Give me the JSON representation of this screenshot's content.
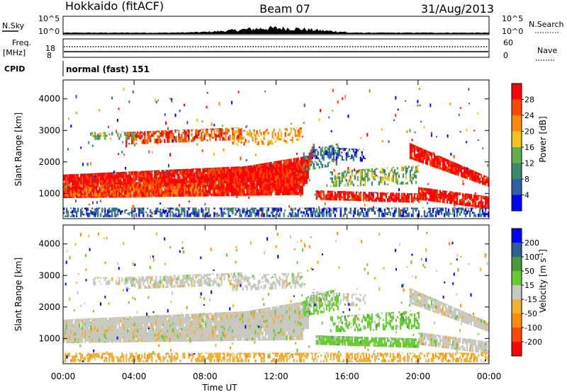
{
  "header": {
    "title": "Hokkaido (fitACF)",
    "beam": "Beam 07",
    "date": "31/Aug/2013"
  },
  "sky_panel": {
    "label": "N.Sky",
    "right_label": "N.Search",
    "ticks_left": [
      "10^5",
      "10^0"
    ],
    "ticks_right": [
      "10^5",
      "10^0"
    ]
  },
  "freq_panel": {
    "label_line1": "Freq.",
    "label_line2": "[MHz]",
    "ticks_left": [
      "18",
      "8"
    ],
    "ticks_right": [
      "60",
      "0"
    ],
    "right_label": "Nave"
  },
  "cpid_panel": {
    "label": "CPID",
    "value": "normal (fast) 151"
  },
  "colors": {
    "power": [
      "#0000ff",
      "#2e5fa8",
      "#3c8a6c",
      "#62ad4e",
      "#f2c417",
      "#ff8c00",
      "#ff4a00",
      "#ff0000"
    ],
    "velocity": [
      "#ff0000",
      "#ff4a00",
      "#ff8c00",
      "#f0b030",
      "#c8c8c0",
      "#66cc33",
      "#4a9a3c",
      "#2e6090",
      "#0000ff"
    ]
  },
  "chart_data": [
    {
      "type": "heatmap",
      "title": "Power",
      "xlabel": "",
      "ylabel": "Slant Range [km]",
      "x_ticks": [
        "00:00",
        "04:00",
        "08:00",
        "12:00",
        "16:00",
        "20:00",
        "00:00"
      ],
      "y_ticks": [
        1000,
        2000,
        3000,
        4000
      ],
      "ylim": [
        200,
        4600
      ],
      "colorbar_label": "Power [dB]",
      "colorbar_ticks": [
        "4",
        "8",
        "12",
        "16",
        "20",
        "24",
        "28"
      ],
      "grid": false
    },
    {
      "type": "heatmap",
      "title": "Velocity",
      "xlabel": "Time UT",
      "ylabel": "Slant Range [km]",
      "x_ticks": [
        "00:00",
        "04:00",
        "08:00",
        "12:00",
        "16:00",
        "20:00",
        "00:00"
      ],
      "y_ticks": [
        1000,
        2000,
        3000,
        4000
      ],
      "ylim": [
        200,
        4600
      ],
      "colorbar_label": "Velocity [m s^-1]",
      "colorbar_ticks": [
        "200",
        "100",
        "50",
        "15",
        "-15",
        "-50",
        "-100",
        "-200"
      ],
      "grid": false
    }
  ]
}
